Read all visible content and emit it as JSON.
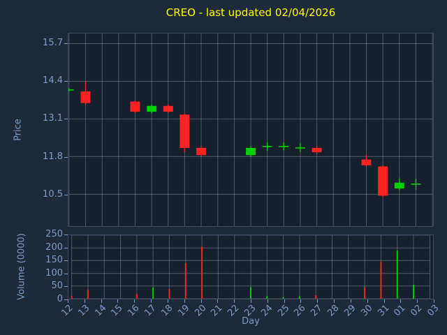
{
  "title": "CREO - last updated 02/04/2026",
  "colors": {
    "figure_bg": "#1e2a38",
    "plot_bg": "#17212e",
    "grid": "rgba(255,255,255,0.25)",
    "label": "#7d9bc8",
    "title": "#ffff00",
    "up": "#00d000",
    "down": "#ff2222"
  },
  "x_axis": {
    "label": "Day",
    "ticks": [
      "12",
      "13",
      "14",
      "15",
      "16",
      "17",
      "18",
      "19",
      "20",
      "21",
      "22",
      "23",
      "24",
      "25",
      "26",
      "27",
      "28",
      "29",
      "30",
      "31",
      "01",
      "02",
      "03"
    ]
  },
  "price_axis": {
    "label": "Price",
    "tick_values": [
      15.7,
      14.4,
      13.1,
      11.8,
      10.5
    ],
    "tick_labels": [
      "15.7",
      "14.4",
      "13.1",
      "11.8",
      "10.5"
    ],
    "range": [
      9.4,
      16.05
    ]
  },
  "volume_axis": {
    "label": "Volume (0000)",
    "tick_values": [
      0,
      50,
      100,
      150,
      200,
      250
    ],
    "tick_labels": [
      "0",
      "50",
      "100",
      "150",
      "200",
      "250"
    ],
    "range": [
      0,
      250
    ]
  },
  "chart_data": {
    "type": "candlestick",
    "title": "CREO - last updated 02/04/2026",
    "xlabel": "Day",
    "price_ylabel": "Price",
    "volume_ylabel": "Volume (0000)",
    "grid": true,
    "x_categories": [
      "12",
      "13",
      "14",
      "15",
      "16",
      "17",
      "18",
      "19",
      "20",
      "21",
      "22",
      "23",
      "24",
      "25",
      "26",
      "27",
      "28",
      "29",
      "30",
      "31",
      "01",
      "02",
      "03"
    ],
    "candles": [
      {
        "day": "12",
        "open": 14.1,
        "high": 14.16,
        "low": 14.05,
        "close": 14.1,
        "dir": "up",
        "volume": 12,
        "vol_dir": "down"
      },
      {
        "day": "13",
        "open": 14.05,
        "high": 14.4,
        "low": 13.58,
        "close": 13.65,
        "dir": "down",
        "volume": 35
      },
      {
        "day": "16",
        "open": 13.7,
        "high": 13.73,
        "low": 13.32,
        "close": 13.35,
        "dir": "down",
        "volume": 18
      },
      {
        "day": "17",
        "open": 13.35,
        "high": 13.6,
        "low": 13.3,
        "close": 13.55,
        "dir": "up",
        "volume": 45
      },
      {
        "day": "18",
        "open": 13.55,
        "high": 13.6,
        "low": 13.32,
        "close": 13.35,
        "dir": "down",
        "volume": 38
      },
      {
        "day": "19",
        "open": 13.25,
        "high": 13.28,
        "low": 11.95,
        "close": 12.1,
        "dir": "down",
        "volume": 140
      },
      {
        "day": "20",
        "open": 12.1,
        "high": 12.16,
        "low": 11.8,
        "close": 11.85,
        "dir": "down",
        "volume": 205
      },
      {
        "day": "23",
        "open": 11.85,
        "high": 12.16,
        "low": 11.8,
        "close": 12.1,
        "dir": "up",
        "volume": 46
      },
      {
        "day": "24",
        "open": 12.15,
        "high": 12.3,
        "low": 12.0,
        "close": 12.15,
        "dir": "up",
        "volume": 10
      },
      {
        "day": "25",
        "open": 12.15,
        "high": 12.28,
        "low": 12.02,
        "close": 12.15,
        "dir": "up",
        "volume": 6
      },
      {
        "day": "26",
        "open": 12.1,
        "high": 12.26,
        "low": 11.96,
        "close": 12.1,
        "dir": "up",
        "volume": 10
      },
      {
        "day": "27",
        "open": 12.1,
        "high": 12.16,
        "low": 11.9,
        "close": 11.95,
        "dir": "down",
        "volume": 14
      },
      {
        "day": "30",
        "open": 11.7,
        "high": 11.86,
        "low": 11.46,
        "close": 11.5,
        "dir": "down",
        "volume": 46
      },
      {
        "day": "31",
        "open": 11.46,
        "high": 11.5,
        "low": 10.4,
        "close": 10.45,
        "dir": "down",
        "volume": 145
      },
      {
        "day": "01",
        "open": 10.7,
        "high": 11.05,
        "low": 10.64,
        "close": 10.9,
        "dir": "up",
        "volume": 190
      },
      {
        "day": "02",
        "open": 10.85,
        "high": 11.04,
        "low": 10.66,
        "close": 10.85,
        "dir": "up",
        "volume": 55
      }
    ]
  }
}
